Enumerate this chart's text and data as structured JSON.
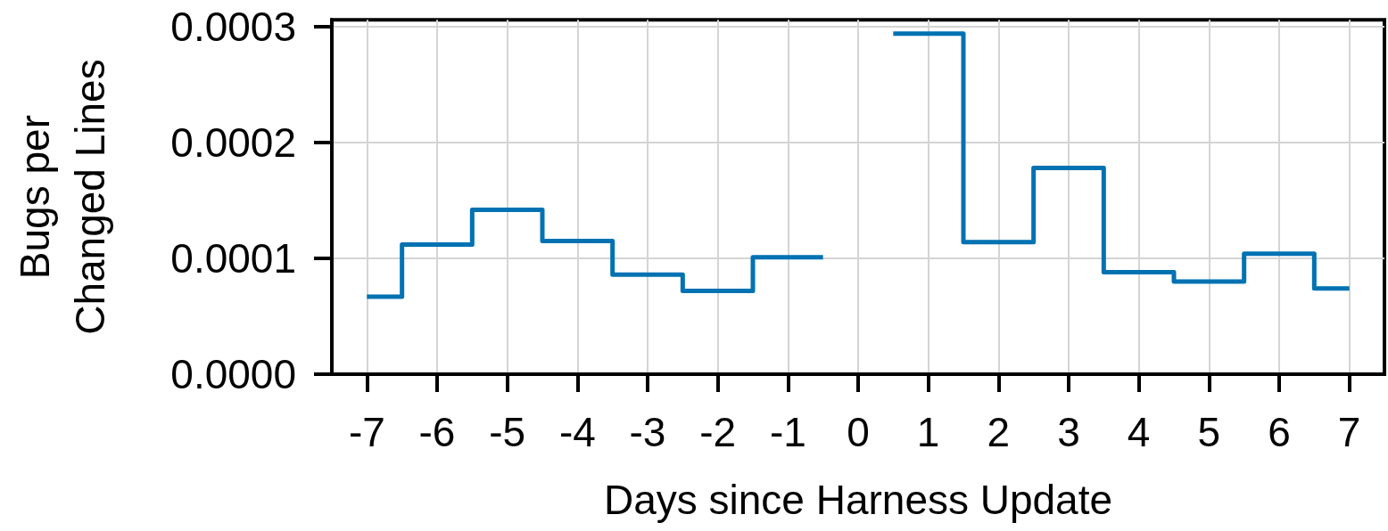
{
  "chart_data": {
    "type": "step",
    "xlabel": "Days since Harness Update",
    "ylabel": "Bugs per\nChanged Lines",
    "x": [
      -7,
      -6,
      -5,
      -4,
      -3,
      -2,
      -1,
      0,
      1,
      2,
      3,
      4,
      5,
      6,
      7
    ],
    "values": [
      6.7e-05,
      0.000112,
      0.000142,
      0.000115,
      8.6e-05,
      7.2e-05,
      0.000101,
      null,
      0.000294,
      0.000114,
      0.000178,
      8.8e-05,
      8e-05,
      0.000104,
      7.4e-05
    ],
    "color": "#0072b2",
    "xlim": [
      -7.5,
      7.5
    ],
    "xticks": [
      -7,
      -6,
      -5,
      -4,
      -3,
      -2,
      -1,
      0,
      1,
      2,
      3,
      4,
      5,
      6,
      7
    ],
    "ylim": [
      0,
      0.000306
    ],
    "yticks": [
      {
        "value": 0,
        "label": "0.0000"
      },
      {
        "value": 0.0001,
        "label": "0.0001"
      },
      {
        "value": 0.0002,
        "label": "0.0002"
      },
      {
        "value": 0.0003,
        "label": "0.0003"
      }
    ],
    "grid": true,
    "marker": "none",
    "line_style": "solid"
  }
}
